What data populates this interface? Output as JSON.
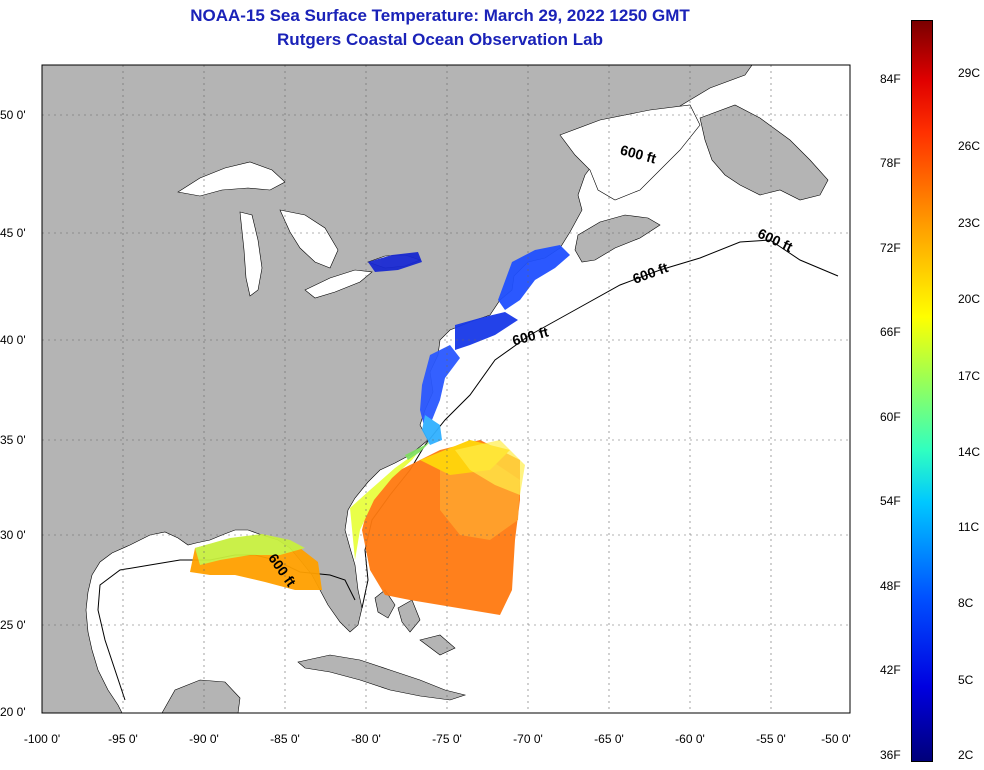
{
  "title": "NOAA-15 Sea Surface Temperature:  March 29, 2022 1250 GMT",
  "subtitle": "Rutgers Coastal Ocean Observation Lab",
  "lat_labels": [
    "50 0'",
    "45 0'",
    "40 0'",
    "35 0'",
    "30 0'",
    "25 0'",
    "20 0'"
  ],
  "lon_labels": [
    "-100 0'",
    "-95 0'",
    "-90 0'",
    "-85 0'",
    "-80 0'",
    "-75 0'",
    "-70 0'",
    "-65 0'",
    "-60 0'",
    "-55 0'",
    "-50 0'"
  ],
  "colorbar": {
    "f_labels": [
      "84F",
      "78F",
      "72F",
      "66F",
      "60F",
      "54F",
      "48F",
      "42F",
      "36F"
    ],
    "c_labels": [
      "29C",
      "26C",
      "23C",
      "20C",
      "17C",
      "14C",
      "11C",
      "8C",
      "5C",
      "2C"
    ],
    "min_color": "#00007a",
    "max_color": "#7a0000"
  },
  "depth_labels": [
    "600 ft",
    "600 ft",
    "600 ft",
    "600 ft",
    "600 ft"
  ],
  "colors": {
    "land": "#b4b4b4",
    "ocean": "#ffffff",
    "title": "#1a22b8"
  }
}
